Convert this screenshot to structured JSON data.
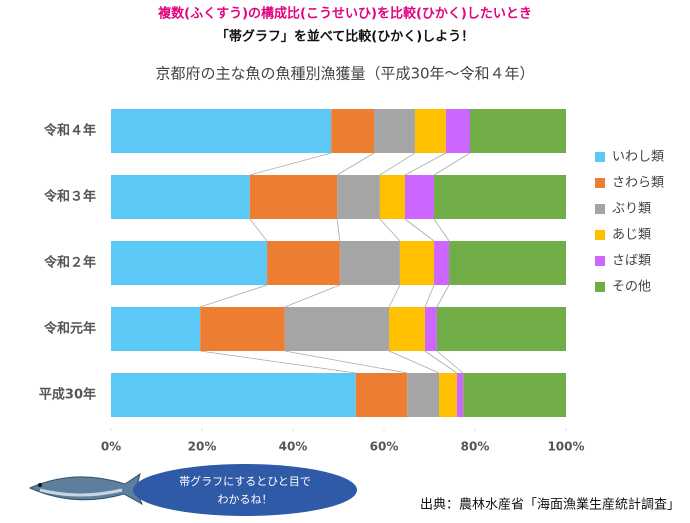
{
  "heading": [
    "複数(ふくすう)の構成比(こうせいひ)を比較(ひかく)したいとき",
    "「帯グラフ」を並べて比較(ひかく)しよう！"
  ],
  "note": [
    "帯グラフにするとひと目で",
    "わかるね！"
  ],
  "source": "出典：農林水産省「海面漁業生産統計調査」",
  "chart_data": {
    "type": "stacked_bar_100",
    "orientation": "horizontal",
    "title": "京都府の主な魚の魚種別漁獲量（平成30年～令和４年）",
    "categories": [
      "令和４年",
      "令和３年",
      "令和２年",
      "令和元年",
      "平成30年"
    ],
    "series": [
      {
        "name": "いわし類",
        "color": "#5bc8f5",
        "values": [
          48.4,
          30.5,
          34.3,
          19.6,
          53.8
        ]
      },
      {
        "name": "さわら類",
        "color": "#ed7d31",
        "values": [
          9.4,
          19.2,
          16.0,
          18.6,
          11.3
        ]
      },
      {
        "name": "ぶり類",
        "color": "#a5a5a5",
        "values": [
          9.0,
          9.4,
          13.2,
          22.9,
          7.0
        ]
      },
      {
        "name": "あじ類",
        "color": "#ffc000",
        "values": [
          6.8,
          5.5,
          7.5,
          7.9,
          3.9
        ]
      },
      {
        "name": "さば類",
        "color": "#cc66ff",
        "values": [
          5.3,
          6.4,
          3.3,
          2.6,
          1.4
        ]
      },
      {
        "name": "その他",
        "color": "#70ad47",
        "values": [
          21.1,
          29.0,
          25.7,
          28.4,
          22.6
        ]
      }
    ],
    "xlim": [
      0,
      100
    ],
    "xticks": [
      {
        "value": 0,
        "label": "0%"
      },
      {
        "value": 20,
        "label": "20%"
      },
      {
        "value": 40,
        "label": "40%"
      },
      {
        "value": 60,
        "label": "60%"
      },
      {
        "value": 80,
        "label": "80%"
      },
      {
        "value": 100,
        "label": "100%"
      }
    ],
    "legend": "right"
  }
}
